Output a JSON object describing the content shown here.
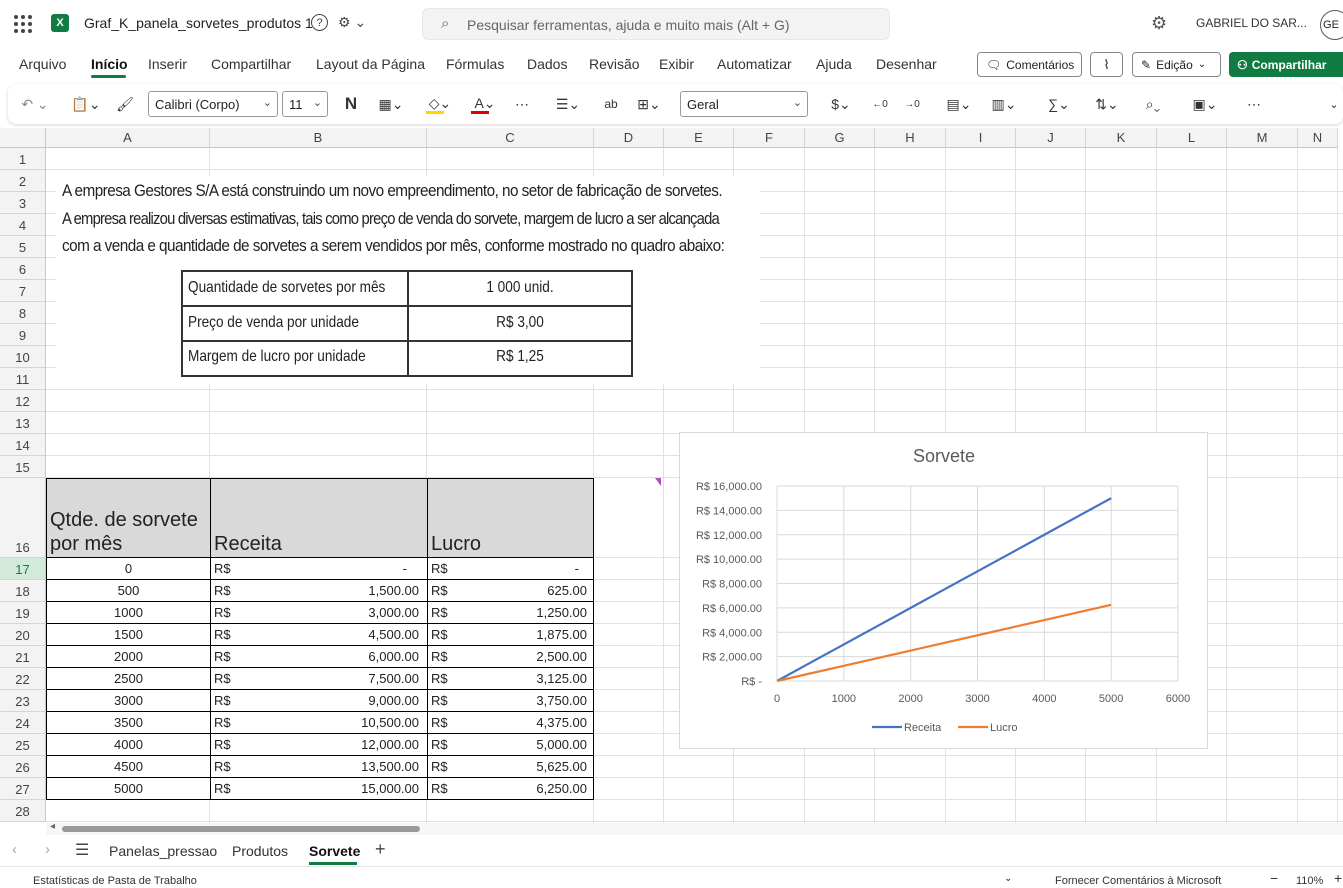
{
  "app": {
    "file_name": "Graf_K_panela_sorvetes_produtos 1",
    "search_placeholder": "Pesquisar ferramentas, ajuda e muito mais (Alt + G)",
    "user_name": "GABRIEL DO SAR...",
    "user_initials": "GE"
  },
  "menu": {
    "items": [
      "Arquivo",
      "Início",
      "Inserir",
      "Compartilhar",
      "Layout da Página",
      "Fórmulas",
      "Dados",
      "Revisão",
      "Exibir",
      "Automatizar",
      "Ajuda",
      "Desenhar"
    ],
    "active": "Início",
    "comments_label": "Comentários",
    "edit_label": "Edição",
    "share_label": "Compartilhar"
  },
  "toolbar": {
    "font_name": "Calibri (Corpo)",
    "font_size": "11",
    "bold_label": "N",
    "number_format": "Geral",
    "currency_symbol": "$",
    "sum_symbol": "∑",
    "fill_color": "#ffd700",
    "font_color": "#e00000"
  },
  "columns": [
    "A",
    "B",
    "C",
    "D",
    "E",
    "F",
    "G",
    "H",
    "I",
    "J",
    "K",
    "L",
    "M",
    "N"
  ],
  "rows": [
    "1",
    "2",
    "3",
    "4",
    "5",
    "6",
    "7",
    "8",
    "9",
    "10",
    "11",
    "12",
    "13",
    "14",
    "15",
    "16",
    "17",
    "18",
    "19",
    "20",
    "21",
    "22",
    "23",
    "24",
    "25",
    "26",
    "27",
    "28"
  ],
  "intro": {
    "line1": "A empresa Gestores S/A está construindo um novo empreendimento, no setor de fabricação de sorvetes.",
    "line2": "A empresa realizou diversas estimativas, tais como preço de venda do sorvete, margem de lucro a ser alcançada",
    "line3": "com a venda e quantidade de sorvetes a serem vendidos por mês, conforme mostrado no quadro abaixo:",
    "rows": [
      {
        "label": "Quantidade de sorvetes por mês",
        "value": "1 000 unid."
      },
      {
        "label": "Preço de venda por unidade",
        "value": "R$ 3,00"
      },
      {
        "label": "Margem de lucro por unidade",
        "value": "R$ 1,25"
      }
    ]
  },
  "table": {
    "headers": [
      "Qtde. de sorvete por mês",
      "Receita",
      "Lucro"
    ],
    "header_line1": "Qtde. de sorvete",
    "header_line2": "por mês",
    "currency": "R$",
    "rows": [
      {
        "qty": "0",
        "receita": "-",
        "lucro": "-"
      },
      {
        "qty": "500",
        "receita": "1,500.00",
        "lucro": "625.00"
      },
      {
        "qty": "1000",
        "receita": "3,000.00",
        "lucro": "1,250.00"
      },
      {
        "qty": "1500",
        "receita": "4,500.00",
        "lucro": "1,875.00"
      },
      {
        "qty": "2000",
        "receita": "6,000.00",
        "lucro": "2,500.00"
      },
      {
        "qty": "2500",
        "receita": "7,500.00",
        "lucro": "3,125.00"
      },
      {
        "qty": "3000",
        "receita": "9,000.00",
        "lucro": "3,750.00"
      },
      {
        "qty": "3500",
        "receita": "10,500.00",
        "lucro": "4,375.00"
      },
      {
        "qty": "4000",
        "receita": "12,000.00",
        "lucro": "5,000.00"
      },
      {
        "qty": "4500",
        "receita": "13,500.00",
        "lucro": "5,625.00"
      },
      {
        "qty": "5000",
        "receita": "15,000.00",
        "lucro": "6,250.00"
      }
    ]
  },
  "chart_data": {
    "type": "line",
    "title": "Sorvete",
    "x": [
      0,
      500,
      1000,
      1500,
      2000,
      2500,
      3000,
      3500,
      4000,
      4500,
      5000
    ],
    "xlim": [
      0,
      6000
    ],
    "xticks": [
      "0",
      "1000",
      "2000",
      "3000",
      "4000",
      "5000",
      "6000"
    ],
    "ylim": [
      0,
      16000
    ],
    "yticks": [
      "R$ -",
      "R$ 2,000.00",
      "R$ 4,000.00",
      "R$ 6,000.00",
      "R$ 8,000.00",
      "R$ 10,000.00",
      "R$ 12,000.00",
      "R$ 14,000.00",
      "R$ 16,000.00"
    ],
    "grid": true,
    "legend": "bottom",
    "series": [
      {
        "name": "Receita",
        "color": "#4472c4",
        "values": [
          0,
          1500,
          3000,
          4500,
          6000,
          7500,
          9000,
          10500,
          12000,
          13500,
          15000
        ]
      },
      {
        "name": "Lucro",
        "color": "#ed7d31",
        "values": [
          0,
          625,
          1250,
          1875,
          2500,
          3125,
          3750,
          4375,
          5000,
          5625,
          6250
        ]
      }
    ]
  },
  "sheets": {
    "tabs": [
      "Panelas_pressao",
      "Produtos",
      "Sorvete"
    ],
    "active": "Sorvete"
  },
  "status": {
    "left": "Estatísticas de Pasta de Trabalho",
    "feedback": "Fornecer Comentários à Microsoft",
    "zoom": "110%"
  }
}
